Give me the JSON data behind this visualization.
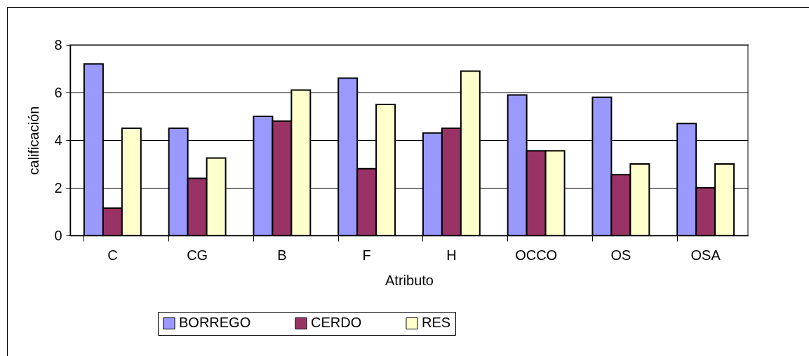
{
  "chart_data": {
    "type": "bar",
    "xlabel": "Atributo",
    "ylabel": "calificación",
    "categories": [
      "C",
      "CG",
      "B",
      "F",
      "H",
      "OCCO",
      "OS",
      "OSA"
    ],
    "series": [
      {
        "name": "BORREGO",
        "color": "#9999ff",
        "values": [
          7.2,
          4.5,
          5.0,
          6.6,
          4.3,
          5.9,
          5.8,
          4.7
        ]
      },
      {
        "name": "CERDO",
        "color": "#993366",
        "values": [
          1.15,
          2.4,
          4.8,
          2.8,
          4.5,
          3.55,
          2.55,
          2.0
        ]
      },
      {
        "name": "RES",
        "color": "#ffffcc",
        "values": [
          4.5,
          3.25,
          6.1,
          5.5,
          6.9,
          3.55,
          3.0,
          3.0
        ]
      }
    ],
    "ylim": [
      0,
      8
    ],
    "yticks": [
      0,
      2,
      4,
      6,
      8
    ],
    "grid": "y",
    "legend": "bottom"
  }
}
